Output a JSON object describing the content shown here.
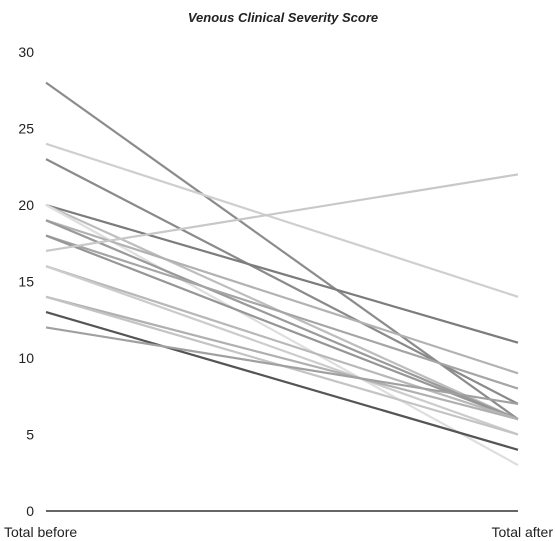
{
  "chart_data": {
    "type": "line",
    "title": "Venous  Clinical Severity Score",
    "xlabel": "",
    "ylabel": "",
    "categories": [
      "Total before",
      "Total after"
    ],
    "ylim": [
      0,
      30
    ],
    "yticks": [
      0,
      5,
      10,
      15,
      20,
      25,
      30
    ],
    "grid": false,
    "legend": "none",
    "series": [
      {
        "values": [
          28,
          6
        ],
        "color": "#8c8c8c"
      },
      {
        "values": [
          24,
          14
        ],
        "color": "#cfcfcf"
      },
      {
        "values": [
          23,
          7
        ],
        "color": "#8a8a8a"
      },
      {
        "values": [
          20,
          11
        ],
        "color": "#7c7c7c"
      },
      {
        "values": [
          20,
          6
        ],
        "color": "#bdbdbd"
      },
      {
        "values": [
          20,
          3
        ],
        "color": "#dedede"
      },
      {
        "values": [
          19,
          9
        ],
        "color": "#b2b2b2"
      },
      {
        "values": [
          19,
          6
        ],
        "color": "#9a9a9a"
      },
      {
        "values": [
          18,
          8
        ],
        "color": "#a5a5a5"
      },
      {
        "values": [
          18,
          6
        ],
        "color": "#969696"
      },
      {
        "values": [
          17,
          22
        ],
        "color": "#c8c8c8"
      },
      {
        "values": [
          16,
          6
        ],
        "color": "#b8b8b8"
      },
      {
        "values": [
          16,
          5
        ],
        "color": "#cccccc"
      },
      {
        "values": [
          14,
          6
        ],
        "color": "#b0b0b0"
      },
      {
        "values": [
          14,
          5
        ],
        "color": "#c4c4c4"
      },
      {
        "values": [
          13,
          4
        ],
        "color": "#555555"
      },
      {
        "values": [
          12,
          7
        ],
        "color": "#a0a0a0"
      }
    ]
  }
}
